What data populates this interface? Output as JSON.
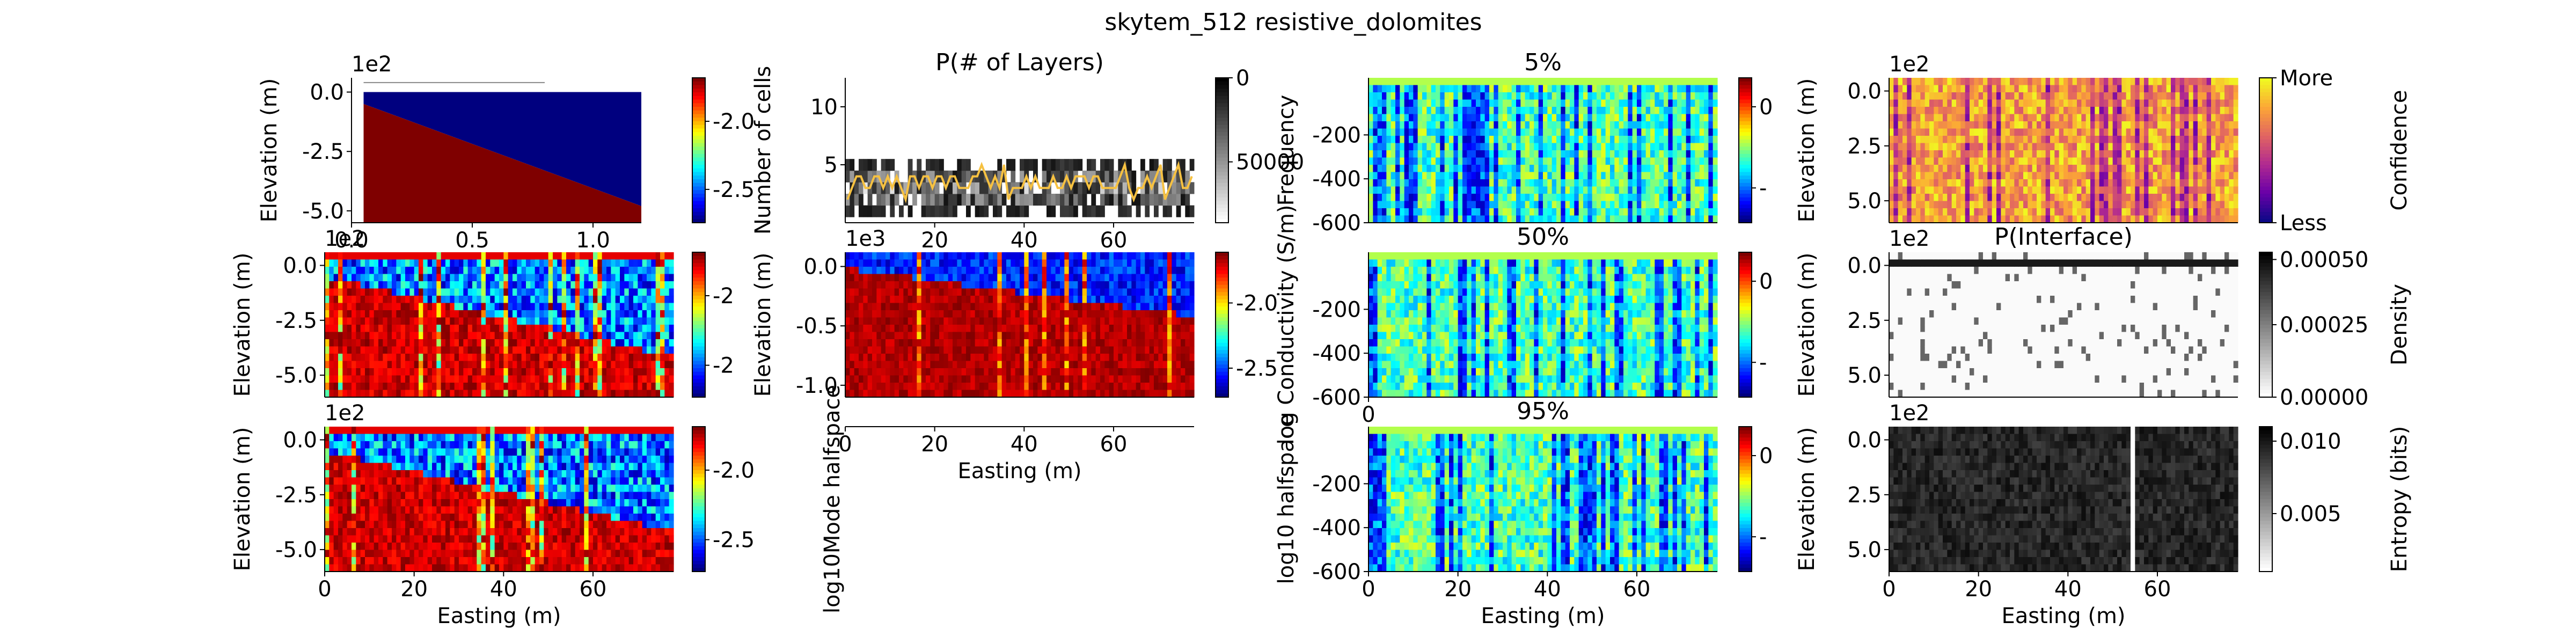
{
  "figure": {
    "title": "skytem_512 resistive_dolomites"
  },
  "colors": {
    "jet": [
      "#00007f",
      "#0000ff",
      "#007fff",
      "#00ffff",
      "#7fff7f",
      "#ffff00",
      "#ff7f00",
      "#ff0000",
      "#7f0000"
    ],
    "plasma": [
      "#0d0887",
      "#6a00a8",
      "#b12a90",
      "#e16462",
      "#fca636",
      "#f0f921"
    ],
    "gray": [
      "#ffffff",
      "#000000"
    ],
    "median_line": "#f6c141"
  },
  "chart_data": [
    {
      "id": "true-model",
      "type": "heatmap",
      "title": "",
      "xlabel": "",
      "ylabel": "Elevation (m)",
      "x_offset_label": "1e2",
      "y_offset_label": "1e2",
      "xlim": [
        0,
        1.2
      ],
      "ylim": [
        -5.5,
        0.6
      ],
      "xticks": [
        {
          "v": 0.0,
          "t": "0.0"
        },
        {
          "v": 0.5,
          "t": "0.5"
        },
        {
          "v": 1.0,
          "t": "1.0"
        }
      ],
      "yticks": [
        {
          "v": 0.0,
          "t": "0.0"
        },
        {
          "v": -2.5,
          "t": "-2.5"
        },
        {
          "v": -5.0,
          "t": "-5.0"
        }
      ],
      "colorbar": {
        "cmap": "jet",
        "ticks": [
          {
            "v": 0.3,
            "t": "-2.0"
          },
          {
            "v": 0.77,
            "t": "-2.5"
          }
        ]
      }
    },
    {
      "id": "num-layers",
      "type": "heatmap",
      "title": "P(# of Layers)",
      "xlabel": "",
      "ylabel": "Number of cells",
      "xlim": [
        0,
        78
      ],
      "ylim": [
        0,
        12.5
      ],
      "xticks": [
        {
          "v": 20,
          "t": "20"
        },
        {
          "v": 40,
          "t": "40"
        },
        {
          "v": 60,
          "t": "60"
        }
      ],
      "yticks": [
        {
          "v": 5,
          "t": "5"
        },
        {
          "v": 10,
          "t": "10"
        }
      ],
      "colorbar": {
        "cmap": "gray",
        "ticks": [
          {
            "v": 0,
            "t": "0"
          },
          {
            "v": 0.58,
            "t": "50000"
          }
        ]
      }
    },
    {
      "id": "percentile-5",
      "type": "heatmap",
      "title": "5%",
      "xlabel": "",
      "ylabel": "Frequency",
      "xlim": [
        0,
        78
      ],
      "ylim": [
        -600,
        60
      ],
      "xticks": [],
      "yticks": [
        {
          "v": -200,
          "t": "-200"
        },
        {
          "v": -400,
          "t": "-400"
        },
        {
          "v": -600,
          "t": "-600"
        }
      ],
      "colorbar": {
        "cmap": "jet",
        "ticks": [
          {
            "v": 0.2,
            "t": "0"
          },
          {
            "v": 0.76,
            "t": "-"
          }
        ]
      }
    },
    {
      "id": "confidence",
      "type": "heatmap",
      "title": "",
      "xlabel": "",
      "ylabel": "Elevation (m)",
      "y_offset_label": "1e2",
      "xlim": [
        0,
        78
      ],
      "ylim": [
        -6,
        0.6
      ],
      "xticks": [],
      "yticks": [
        {
          "v": 0,
          "t": "0.0"
        },
        {
          "v": -2.5,
          "t": "2.5"
        },
        {
          "v": -5,
          "t": "5.0"
        }
      ],
      "colorbar": {
        "cmap": "plasma",
        "label": "Confidence",
        "ticks": [
          {
            "v": 0,
            "t": "More"
          },
          {
            "v": 1,
            "t": "Less"
          }
        ]
      }
    },
    {
      "id": "mean-model",
      "type": "heatmap",
      "title": "",
      "xlabel": "",
      "ylabel": "Elevation (m)",
      "y_offset_label": "1e2",
      "xlim": [
        0,
        78
      ],
      "ylim": [
        -6,
        0.6
      ],
      "xticks": [],
      "yticks": [
        {
          "v": 0,
          "t": "0.0"
        },
        {
          "v": -2.5,
          "t": "-2.5"
        },
        {
          "v": -5,
          "t": "-5.0"
        }
      ],
      "colorbar": {
        "cmap": "jet",
        "ticks": [
          {
            "v": 0.3,
            "t": "-2"
          },
          {
            "v": 0.78,
            "t": "-2"
          }
        ]
      }
    },
    {
      "id": "mean-conductivity",
      "type": "heatmap",
      "title": "",
      "xlabel": "",
      "ylabel": "Elevation (m)",
      "y_offset_label": "1e3",
      "xlim": [
        0,
        78
      ],
      "ylim": [
        -1.1,
        0.12
      ],
      "xticks": [],
      "yticks": [
        {
          "v": 0,
          "t": "0.0"
        },
        {
          "v": -0.5,
          "t": "-0.5"
        },
        {
          "v": -1.0,
          "t": "-1.0"
        }
      ],
      "colorbar": {
        "cmap": "jet",
        "ticks": [
          {
            "v": 0.35,
            "t": "-2.0"
          },
          {
            "v": 0.8,
            "t": "-2.5"
          }
        ]
      }
    },
    {
      "id": "percentile-50",
      "type": "heatmap",
      "title": "50%",
      "xlabel": "",
      "ylabel": "log Conductivity (S/m)",
      "xlim": [
        0,
        78
      ],
      "ylim": [
        -600,
        60
      ],
      "xticks": [
        {
          "v": 0,
          "t": "0"
        }
      ],
      "yticks": [
        {
          "v": -200,
          "t": "-200"
        },
        {
          "v": -400,
          "t": "-400"
        },
        {
          "v": -600,
          "t": "-600"
        }
      ],
      "colorbar": {
        "cmap": "jet",
        "ticks": [
          {
            "v": 0.2,
            "t": "0"
          },
          {
            "v": 0.76,
            "t": "-"
          }
        ]
      }
    },
    {
      "id": "interface",
      "type": "heatmap",
      "title": "P(Interface)",
      "xlabel": "",
      "ylabel": "Elevation (m)",
      "y_offset_label": "1e2",
      "xlim": [
        0,
        78
      ],
      "ylim": [
        -6,
        0.6
      ],
      "xticks": [],
      "yticks": [
        {
          "v": 0,
          "t": "0.0"
        },
        {
          "v": -2.5,
          "t": "2.5"
        },
        {
          "v": -5,
          "t": "5.0"
        }
      ],
      "colorbar": {
        "cmap": "gray",
        "label": "Density",
        "ticks": [
          {
            "v": 1,
            "t": "0.00000"
          },
          {
            "v": 0.5,
            "t": "0.00025"
          },
          {
            "v": 0.05,
            "t": "0.00050"
          }
        ]
      }
    },
    {
      "id": "mode-model",
      "type": "heatmap",
      "title": "",
      "xlabel": "Easting (m)",
      "ylabel": "Elevation (m)",
      "y_offset_label": "1e2",
      "xlim": [
        0,
        78
      ],
      "ylim": [
        -6,
        0.6
      ],
      "xticks": [
        {
          "v": 0,
          "t": "0"
        },
        {
          "v": 20,
          "t": "20"
        },
        {
          "v": 40,
          "t": "40"
        },
        {
          "v": 60,
          "t": "60"
        }
      ],
      "yticks": [
        {
          "v": 0,
          "t": "0.0"
        },
        {
          "v": -2.5,
          "t": "-2.5"
        },
        {
          "v": -5,
          "t": "-5.0"
        }
      ],
      "colorbar": {
        "cmap": "jet",
        "label": "log10Mode halfspace",
        "ticks": [
          {
            "v": 0.3,
            "t": "-2.0"
          },
          {
            "v": 0.78,
            "t": "-2.5"
          }
        ]
      }
    },
    {
      "id": "blank-axis",
      "type": "heatmap",
      "title": "",
      "xlabel": "Easting (m)",
      "ylabel": "",
      "xlim": [
        0,
        78
      ],
      "ylim": [
        0,
        1
      ],
      "xticks": [
        {
          "v": 0,
          "t": "0"
        },
        {
          "v": 20,
          "t": "20"
        },
        {
          "v": 40,
          "t": "40"
        },
        {
          "v": 60,
          "t": "60"
        }
      ],
      "yticks": [],
      "colorbar": null
    },
    {
      "id": "percentile-95",
      "type": "heatmap",
      "title": "95%",
      "xlabel": "Easting (m)",
      "ylabel": "log10 halfspace",
      "xlim": [
        0,
        78
      ],
      "ylim": [
        -600,
        60
      ],
      "xticks": [
        {
          "v": 0,
          "t": "0"
        },
        {
          "v": 20,
          "t": "20"
        },
        {
          "v": 40,
          "t": "40"
        },
        {
          "v": 60,
          "t": "60"
        }
      ],
      "yticks": [
        {
          "v": -200,
          "t": "-200"
        },
        {
          "v": -400,
          "t": "-400"
        },
        {
          "v": -600,
          "t": "-600"
        }
      ],
      "colorbar": {
        "cmap": "jet",
        "ticks": [
          {
            "v": 0.2,
            "t": "0"
          },
          {
            "v": 0.76,
            "t": "-"
          }
        ]
      }
    },
    {
      "id": "entropy",
      "type": "heatmap",
      "title": "",
      "xlabel": "Easting (m)",
      "ylabel": "Elevation (m)",
      "y_offset_label": "1e2",
      "xlim": [
        0,
        78
      ],
      "ylim": [
        -6,
        0.6
      ],
      "xticks": [
        {
          "v": 0,
          "t": "0"
        },
        {
          "v": 20,
          "t": "20"
        },
        {
          "v": 40,
          "t": "40"
        },
        {
          "v": 60,
          "t": "60"
        }
      ],
      "yticks": [
        {
          "v": 0,
          "t": "0.0"
        },
        {
          "v": -2.5,
          "t": "2.5"
        },
        {
          "v": -5,
          "t": "5.0"
        }
      ],
      "colorbar": {
        "cmap": "gray",
        "label": "Entropy (bits)",
        "ticks": [
          {
            "v": 0.1,
            "t": "0.010"
          },
          {
            "v": 0.6,
            "t": "0.005"
          }
        ]
      }
    }
  ]
}
